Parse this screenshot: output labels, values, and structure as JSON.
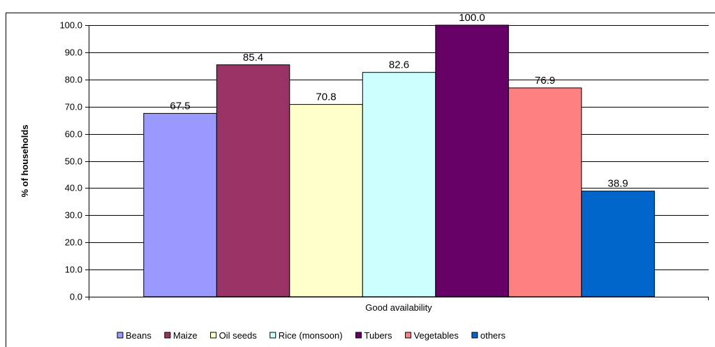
{
  "chart_data": {
    "type": "bar",
    "title": "",
    "categories": [
      "Good availability"
    ],
    "series": [
      {
        "name": "Beans",
        "values": [
          67.5
        ],
        "color": "#9999ff"
      },
      {
        "name": "Maize",
        "values": [
          85.4
        ],
        "color": "#993366"
      },
      {
        "name": "Oil seeds",
        "values": [
          70.8
        ],
        "color": "#ffffcc"
      },
      {
        "name": "Rice (monsoon)",
        "values": [
          82.6
        ],
        "color": "#ccffff"
      },
      {
        "name": "Tubers",
        "values": [
          100.0
        ],
        "color": "#660066"
      },
      {
        "name": "Vegetables",
        "values": [
          76.9
        ],
        "color": "#ff8080"
      },
      {
        "name": "others",
        "values": [
          38.9
        ],
        "color": "#0066cc"
      }
    ],
    "xlabel": "",
    "ylabel": "% of households",
    "ylim": [
      0,
      100
    ],
    "yticks": [
      "0.0",
      "10.0",
      "20.0",
      "30.0",
      "40.0",
      "50.0",
      "60.0",
      "70.0",
      "80.0",
      "90.0",
      "100.0"
    ],
    "value_labels": [
      "67.5",
      "85.4",
      "70.8",
      "82.6",
      "100.0",
      "76.9",
      "38.9"
    ],
    "grid": true,
    "legend": "bottom"
  }
}
